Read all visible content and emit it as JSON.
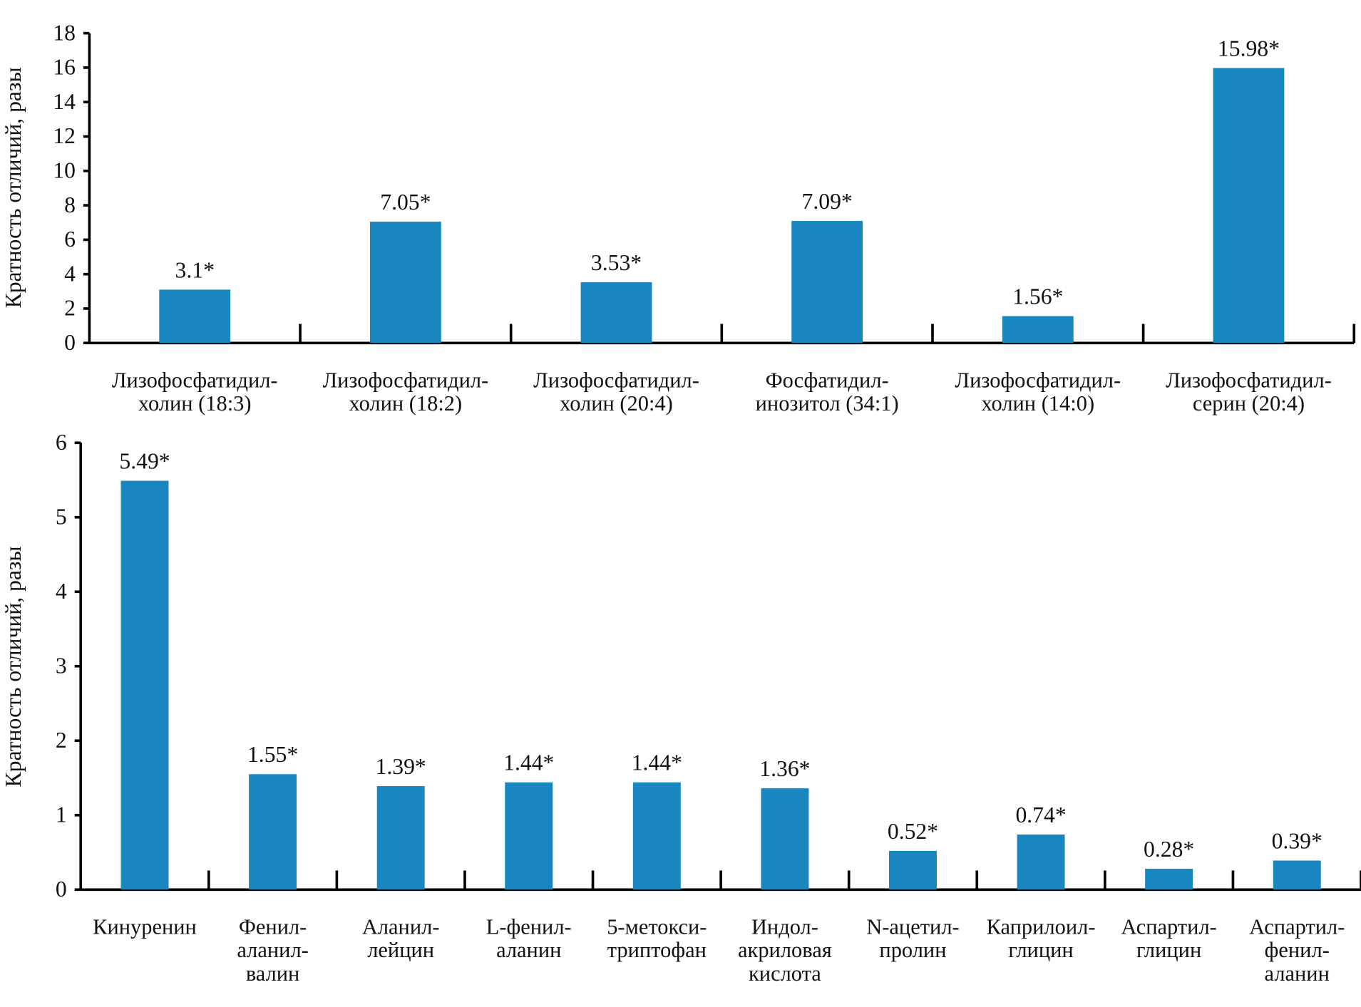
{
  "chart_data": [
    {
      "type": "bar",
      "y_label": "Кратность отличий, разы",
      "categories": [
        "Лизофосфатидил-\nхолин (18:3)",
        "Лизофосфатидил-\nхолин (18:2)",
        "Лизофосфатидил-\nхолин (20:4)",
        "Фосфатидил-\nинозитол (34:1)",
        "Лизофосфатидил-\nхолин (14:0)",
        "Лизофосфатидил-\nсерин (20:4)"
      ],
      "values": [
        3.1,
        7.05,
        3.53,
        7.09,
        1.56,
        15.98
      ],
      "value_labels": [
        "3.1*",
        "7.05*",
        "3.53*",
        "7.09*",
        "1.56*",
        "15.98*"
      ],
      "color": "#1a86c0",
      "ylim": [
        0,
        18
      ],
      "yticks": [
        0,
        2,
        4,
        6,
        8,
        10,
        12,
        14,
        16,
        18
      ]
    },
    {
      "type": "bar",
      "y_label": "Кратность отличий, разы",
      "categories": [
        "Кинуренин",
        "Фенил-\nаланил-\nвалин",
        "Аланил-\nлейцин",
        "L-фенил-\nаланин",
        "5-метокси-\nтриптофан",
        "Индол-\nакриловая\nкислота",
        "N-ацетил-\nпролин",
        "Каприлоил-\nглицин",
        "Аспартил-\nглицин",
        "Аспартил-\nфенил-\nаланин"
      ],
      "values": [
        5.49,
        1.55,
        1.39,
        1.44,
        1.44,
        1.36,
        0.52,
        0.74,
        0.28,
        0.39
      ],
      "value_labels": [
        "5.49*",
        "1.55*",
        "1.39*",
        "1.44*",
        "1.44*",
        "1.36*",
        "0.52*",
        "0.74*",
        "0.28*",
        "0.39*"
      ],
      "color": "#1a86c0",
      "ylim": [
        0,
        6
      ],
      "yticks": [
        0,
        1,
        2,
        3,
        4,
        5,
        6
      ]
    }
  ]
}
